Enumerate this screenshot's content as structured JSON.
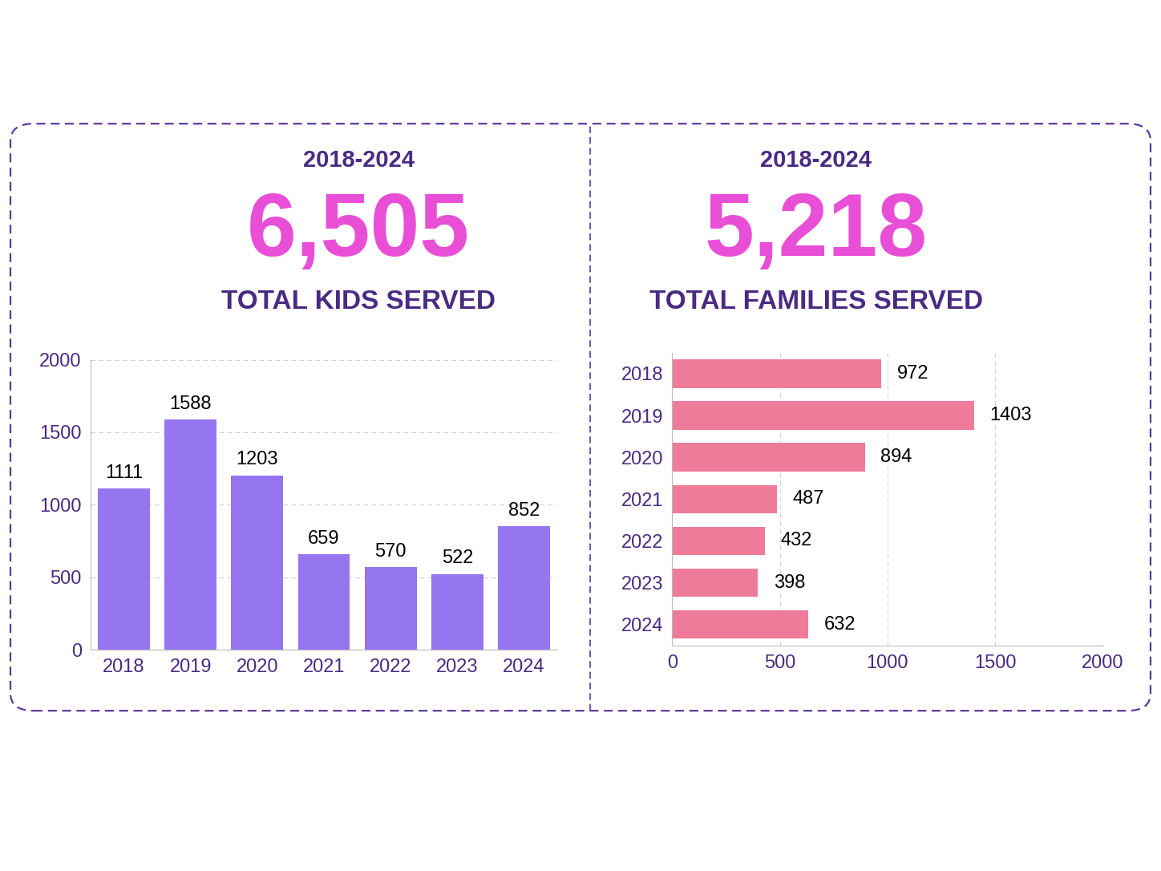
{
  "chart_data": [
    {
      "type": "bar",
      "header": "2018-2024",
      "headline": "6,505",
      "title": "TOTAL KIDS SERVED",
      "categories": [
        "2018",
        "2019",
        "2020",
        "2021",
        "2022",
        "2023",
        "2024"
      ],
      "values": [
        1111,
        1588,
        1203,
        659,
        570,
        522,
        852
      ],
      "color": "#9575f0",
      "ylim": [
        0,
        2000
      ],
      "yticks": [
        0,
        500,
        1000,
        1500,
        2000
      ],
      "grid": true,
      "data_labels": true
    },
    {
      "type": "bar",
      "orientation": "horizontal",
      "header": "2018-2024",
      "headline": "5,218",
      "title": "TOTAL FAMILIES SERVED",
      "categories": [
        "2018",
        "2019",
        "2020",
        "2021",
        "2022",
        "2023",
        "2024"
      ],
      "values": [
        972,
        1403,
        894,
        487,
        432,
        398,
        632
      ],
      "color": "#ef7b9a",
      "xlim": [
        0,
        2000
      ],
      "xticks": [
        0,
        500,
        1000,
        1500,
        2000
      ],
      "grid": true,
      "data_labels": true
    }
  ]
}
